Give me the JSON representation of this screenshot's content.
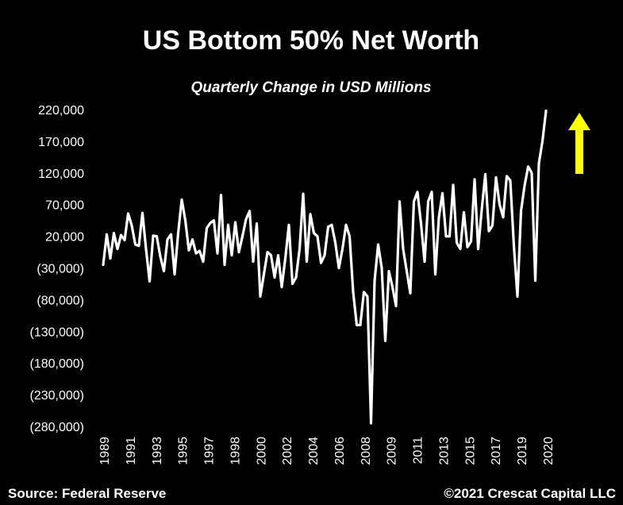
{
  "chart_data": {
    "type": "line",
    "title": "US Bottom 50% Net Worth",
    "subtitle": "Quarterly Change in USD Millions",
    "xlabel": "",
    "ylabel": "",
    "y_ticks": [
      220000,
      170000,
      120000,
      70000,
      20000,
      -30000,
      -80000,
      -130000,
      -180000,
      -230000,
      -280000
    ],
    "y_tick_labels": [
      "220,000",
      "170,000",
      "120,000",
      "70,000",
      "20,000",
      "(30,000)",
      "(80,000)",
      "(130,000)",
      "(180,000)",
      "(230,000)",
      "(280,000)"
    ],
    "x_tick_labels": [
      "1989",
      "1991",
      "1993",
      "1995",
      "1997",
      "1998",
      "2000",
      "2002",
      "2004",
      "2006",
      "2008",
      "2009",
      "2011",
      "2013",
      "2015",
      "2017",
      "2019",
      "2020"
    ],
    "ylim": [
      -280000,
      220000
    ],
    "grid": false,
    "line_color": "#ffffff",
    "annotation_arrow_color": "#ffff00",
    "series": [
      {
        "values": [
          -25000,
          23000,
          -15000,
          25000,
          0,
          22000,
          14000,
          56000,
          37000,
          7000,
          5000,
          57000,
          0,
          -51000,
          21000,
          20000,
          -12000,
          -35000,
          15000,
          23000,
          -40000,
          25000,
          78000,
          45000,
          -2000,
          15000,
          -7000,
          -3000,
          -20000,
          33000,
          41000,
          45000,
          -7000,
          85000,
          -25000,
          38000,
          -10000,
          42000,
          -5000,
          20000,
          47000,
          60000,
          -20000,
          40000,
          -75000,
          -40000,
          -5000,
          -10000,
          -45000,
          -10000,
          -60000,
          -15000,
          38000,
          -55000,
          -45000,
          0,
          87000,
          -20000,
          55000,
          25000,
          20000,
          -22000,
          -10000,
          35000,
          38000,
          10000,
          -30000,
          0,
          38000,
          20000,
          -68000,
          -120000,
          -120000,
          -68000,
          -75000,
          -275000,
          -50000,
          7000,
          -30000,
          -145000,
          -35000,
          -60000,
          -90000,
          75000,
          0,
          -35000,
          -70000,
          75000,
          90000,
          40000,
          -20000,
          75000,
          90000,
          -40000,
          50000,
          88000,
          20000,
          20000,
          101000,
          10000,
          0,
          58000,
          3000,
          12000,
          110000,
          0,
          62000,
          118000,
          28000,
          37000,
          113000,
          70000,
          50000,
          115000,
          108000,
          5000,
          -75000,
          60000,
          100000,
          130000,
          120000,
          -50000,
          135000,
          170000,
          218000
        ]
      }
    ]
  },
  "footer": {
    "source": "Source: Federal Reserve",
    "copyright": "©2021 Crescat Capital LLC"
  }
}
